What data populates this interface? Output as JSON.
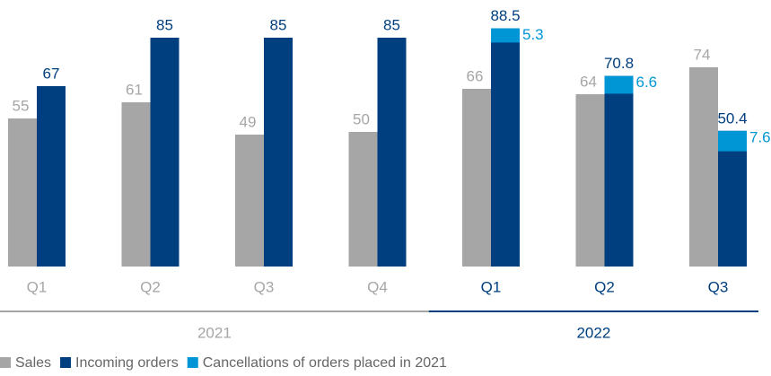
{
  "chart_data": {
    "type": "bar",
    "groups": [
      {
        "label": "2021",
        "categories": [
          "Q1",
          "Q2",
          "Q3",
          "Q4"
        ],
        "color": "#a6a6a6"
      },
      {
        "label": "2022",
        "categories": [
          "Q1",
          "Q2",
          "Q3"
        ],
        "color": "#003f7f"
      }
    ],
    "series": [
      {
        "name": "Sales",
        "color": "#a6a6a6",
        "values": [
          55,
          61,
          49,
          50,
          66,
          64,
          74
        ]
      },
      {
        "name": "Incoming orders",
        "color": "#003f7f",
        "values": [
          67,
          85,
          85,
          85,
          88.5,
          70.8,
          50.4
        ]
      },
      {
        "name": "Cancellations of orders placed in 2021",
        "color": "#0096d6",
        "values": [
          null,
          null,
          null,
          null,
          5.3,
          6.6,
          7.6
        ]
      }
    ],
    "ylim": [
      0,
      99
    ]
  }
}
